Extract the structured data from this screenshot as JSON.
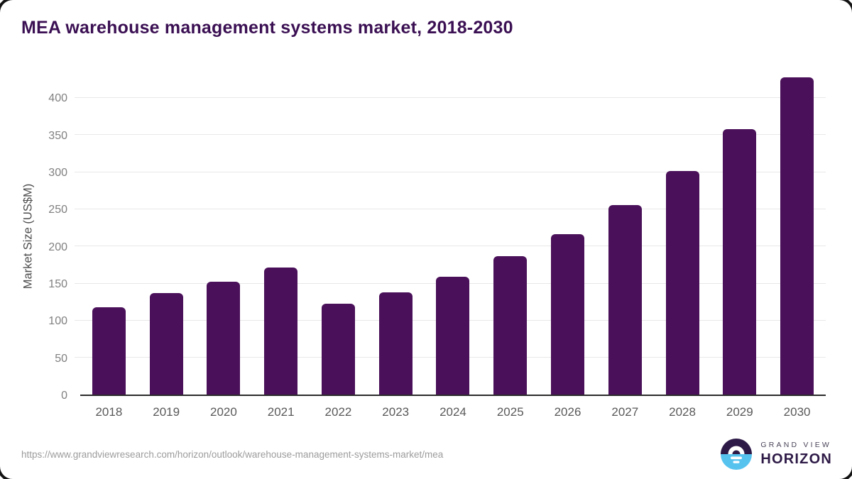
{
  "title": "MEA warehouse management systems market, 2018-2030",
  "chart_data": {
    "type": "bar",
    "categories": [
      "2018",
      "2019",
      "2020",
      "2021",
      "2022",
      "2023",
      "2024",
      "2025",
      "2026",
      "2027",
      "2028",
      "2029",
      "2030"
    ],
    "values": [
      118,
      137,
      152,
      171,
      122,
      138,
      159,
      186,
      216,
      255,
      301,
      357,
      427
    ],
    "title": "MEA warehouse management systems market, 2018-2030",
    "xlabel": "",
    "ylabel": "Market Size (US$M)",
    "ylim": [
      0,
      430
    ],
    "yticks": [
      0,
      50,
      100,
      150,
      200,
      250,
      300,
      350,
      400
    ],
    "grid": "horizontal",
    "legend": "none",
    "series_name": "Market Size (US$M)"
  },
  "footer": {
    "source_url": "https://www.grandviewresearch.com/horizon/outlook/warehouse-management-systems-market/mea",
    "logo": {
      "line1": "GRAND VIEW",
      "line2": "HORIZON"
    }
  },
  "colors": {
    "title": "#3b1053",
    "bar": "#4a1059",
    "axis": "#2b2b2b",
    "grid": "#e8e8e8",
    "tick": "#808080",
    "xtick": "#595959",
    "url": "#9c9c9c",
    "logo_dark": "#2e1a47",
    "logo_blue": "#56c3ef"
  }
}
